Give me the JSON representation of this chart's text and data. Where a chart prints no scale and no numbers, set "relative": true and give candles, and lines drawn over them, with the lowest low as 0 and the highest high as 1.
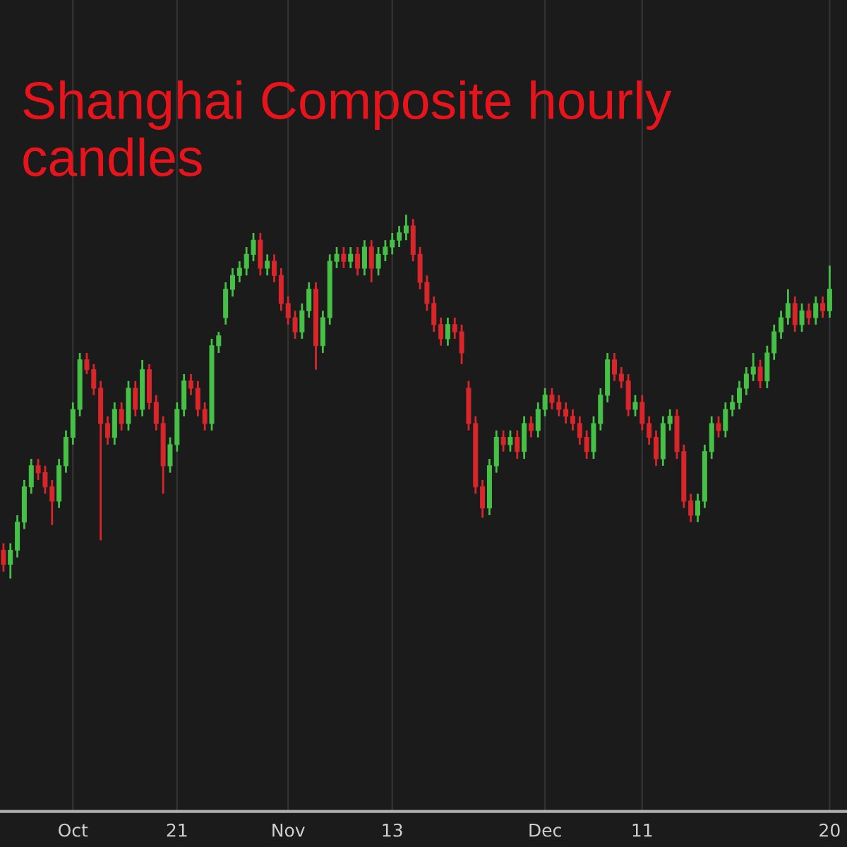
{
  "chart_data": {
    "type": "candlestick",
    "title": "Shanghai Composite hourly candles",
    "relative": true,
    "grid": "x",
    "categories": [
      null,
      null,
      null,
      null,
      null,
      null,
      null,
      null,
      null,
      null,
      "Oct",
      null,
      null,
      null,
      null,
      null,
      null,
      null,
      null,
      null,
      null,
      null,
      null,
      null,
      null,
      "21",
      null,
      null,
      null,
      null,
      null,
      null,
      null,
      null,
      null,
      null,
      null,
      null,
      null,
      null,
      null,
      "Nov",
      null,
      null,
      null,
      null,
      null,
      null,
      null,
      null,
      null,
      null,
      null,
      null,
      null,
      null,
      "13",
      null,
      null,
      null,
      null,
      null,
      null,
      null,
      null,
      null,
      null,
      null,
      null,
      null,
      null,
      null,
      null,
      null,
      null,
      null,
      null,
      null,
      "Dec",
      null,
      null,
      null,
      null,
      null,
      null,
      null,
      null,
      null,
      null,
      null,
      null,
      null,
      "11",
      null,
      null,
      null,
      null,
      null,
      null,
      null,
      null,
      null,
      null,
      null,
      null,
      null,
      null,
      null,
      null,
      null,
      null,
      null,
      null,
      null,
      null,
      null,
      null,
      null,
      null,
      "20"
    ],
    "ohlc": [
      [
        0.078,
        0.097,
        0.019,
        0.039
      ],
      [
        0.039,
        0.097,
        0,
        0.078
      ],
      [
        0.078,
        0.174,
        0.058,
        0.155
      ],
      [
        0.155,
        0.271,
        0.136,
        0.252
      ],
      [
        0.252,
        0.329,
        0.233,
        0.31
      ],
      [
        0.31,
        0.329,
        0.271,
        0.291
      ],
      [
        0.291,
        0.31,
        0.233,
        0.252
      ],
      [
        0.252,
        0.271,
        0.147,
        0.213
      ],
      [
        0.213,
        0.329,
        0.194,
        0.31
      ],
      [
        0.31,
        0.407,
        0.291,
        0.388
      ],
      [
        0.388,
        0.484,
        0.368,
        0.465
      ],
      [
        0.465,
        0.62,
        0.446,
        0.601
      ],
      [
        0.601,
        0.62,
        0.562,
        0.574
      ],
      [
        0.574,
        0.589,
        0.504,
        0.523
      ],
      [
        0.523,
        0.543,
        0.105,
        0.426
      ],
      [
        0.426,
        0.446,
        0.368,
        0.388
      ],
      [
        0.388,
        0.484,
        0.368,
        0.465
      ],
      [
        0.465,
        0.484,
        0.407,
        0.426
      ],
      [
        0.426,
        0.543,
        0.407,
        0.523
      ],
      [
        0.523,
        0.543,
        0.446,
        0.465
      ],
      [
        0.465,
        0.601,
        0.446,
        0.574
      ],
      [
        0.574,
        0.589,
        0.465,
        0.484
      ],
      [
        0.484,
        0.504,
        0.407,
        0.426
      ],
      [
        0.426,
        0.446,
        0.233,
        0.31
      ],
      [
        0.31,
        0.388,
        0.291,
        0.368
      ],
      [
        0.368,
        0.484,
        0.349,
        0.465
      ],
      [
        0.465,
        0.562,
        0.446,
        0.543
      ],
      [
        0.543,
        0.562,
        0.504,
        0.523
      ],
      [
        0.523,
        0.543,
        0.446,
        0.465
      ],
      [
        0.465,
        0.484,
        0.407,
        0.426
      ],
      [
        0.426,
        0.659,
        0.407,
        0.64
      ],
      [
        0.64,
        0.678,
        0.62,
        0.667
      ],
      [
        0.717,
        0.814,
        0.698,
        0.795
      ],
      [
        0.795,
        0.853,
        0.775,
        0.833
      ],
      [
        0.833,
        0.872,
        0.814,
        0.853
      ],
      [
        0.853,
        0.911,
        0.833,
        0.891
      ],
      [
        0.891,
        0.95,
        0.872,
        0.93
      ],
      [
        0.93,
        0.95,
        0.833,
        0.853
      ],
      [
        0.853,
        0.891,
        0.833,
        0.872
      ],
      [
        0.872,
        0.891,
        0.814,
        0.833
      ],
      [
        0.833,
        0.853,
        0.736,
        0.756
      ],
      [
        0.756,
        0.775,
        0.698,
        0.717
      ],
      [
        0.717,
        0.736,
        0.659,
        0.678
      ],
      [
        0.678,
        0.756,
        0.659,
        0.736
      ],
      [
        0.736,
        0.814,
        0.717,
        0.795
      ],
      [
        0.795,
        0.814,
        0.574,
        0.64
      ],
      [
        0.64,
        0.736,
        0.62,
        0.717
      ],
      [
        0.717,
        0.891,
        0.698,
        0.872
      ],
      [
        0.872,
        0.911,
        0.853,
        0.891
      ],
      [
        0.891,
        0.911,
        0.853,
        0.872
      ],
      [
        0.872,
        0.911,
        0.853,
        0.891
      ],
      [
        0.891,
        0.911,
        0.833,
        0.853
      ],
      [
        0.853,
        0.93,
        0.833,
        0.911
      ],
      [
        0.911,
        0.93,
        0.814,
        0.853
      ],
      [
        0.853,
        0.911,
        0.833,
        0.891
      ],
      [
        0.891,
        0.93,
        0.872,
        0.911
      ],
      [
        0.911,
        0.95,
        0.891,
        0.93
      ],
      [
        0.93,
        0.969,
        0.911,
        0.95
      ],
      [
        0.95,
        1,
        0.93,
        0.969
      ],
      [
        0.969,
        0.988,
        0.872,
        0.891
      ],
      [
        0.891,
        0.911,
        0.795,
        0.814
      ],
      [
        0.814,
        0.833,
        0.736,
        0.756
      ],
      [
        0.756,
        0.775,
        0.678,
        0.698
      ],
      [
        0.698,
        0.717,
        0.64,
        0.659
      ],
      [
        0.659,
        0.717,
        0.64,
        0.698
      ],
      [
        0.698,
        0.717,
        0.659,
        0.678
      ],
      [
        0.678,
        0.698,
        0.589,
        0.62
      ],
      [
        0.523,
        0.543,
        0.407,
        0.426
      ],
      [
        0.426,
        0.446,
        0.233,
        0.252
      ],
      [
        0.252,
        0.271,
        0.167,
        0.194
      ],
      [
        0.194,
        0.329,
        0.174,
        0.31
      ],
      [
        0.31,
        0.407,
        0.291,
        0.388
      ],
      [
        0.388,
        0.407,
        0.349,
        0.368
      ],
      [
        0.368,
        0.407,
        0.349,
        0.388
      ],
      [
        0.388,
        0.407,
        0.329,
        0.349
      ],
      [
        0.349,
        0.446,
        0.329,
        0.426
      ],
      [
        0.426,
        0.446,
        0.388,
        0.407
      ],
      [
        0.407,
        0.484,
        0.388,
        0.465
      ],
      [
        0.465,
        0.523,
        0.446,
        0.504
      ],
      [
        0.504,
        0.523,
        0.465,
        0.484
      ],
      [
        0.484,
        0.504,
        0.446,
        0.465
      ],
      [
        0.465,
        0.484,
        0.426,
        0.446
      ],
      [
        0.446,
        0.465,
        0.407,
        0.426
      ],
      [
        0.426,
        0.446,
        0.368,
        0.388
      ],
      [
        0.388,
        0.407,
        0.329,
        0.349
      ],
      [
        0.349,
        0.446,
        0.329,
        0.426
      ],
      [
        0.426,
        0.523,
        0.407,
        0.504
      ],
      [
        0.504,
        0.62,
        0.484,
        0.601
      ],
      [
        0.601,
        0.62,
        0.543,
        0.562
      ],
      [
        0.562,
        0.581,
        0.523,
        0.543
      ],
      [
        0.543,
        0.562,
        0.446,
        0.465
      ],
      [
        0.465,
        0.504,
        0.446,
        0.484
      ],
      [
        0.484,
        0.504,
        0.407,
        0.426
      ],
      [
        0.426,
        0.446,
        0.368,
        0.388
      ],
      [
        0.388,
        0.407,
        0.31,
        0.329
      ],
      [
        0.329,
        0.446,
        0.31,
        0.426
      ],
      [
        0.426,
        0.465,
        0.407,
        0.446
      ],
      [
        0.446,
        0.465,
        0.329,
        0.349
      ],
      [
        0.349,
        0.368,
        0.194,
        0.213
      ],
      [
        0.213,
        0.233,
        0.155,
        0.174
      ],
      [
        0.174,
        0.233,
        0.155,
        0.213
      ],
      [
        0.213,
        0.368,
        0.194,
        0.349
      ],
      [
        0.349,
        0.446,
        0.329,
        0.426
      ],
      [
        0.426,
        0.446,
        0.388,
        0.407
      ],
      [
        0.407,
        0.484,
        0.388,
        0.465
      ],
      [
        0.465,
        0.504,
        0.446,
        0.484
      ],
      [
        0.484,
        0.543,
        0.465,
        0.523
      ],
      [
        0.523,
        0.581,
        0.504,
        0.562
      ],
      [
        0.562,
        0.62,
        0.543,
        0.581
      ],
      [
        0.581,
        0.601,
        0.523,
        0.543
      ],
      [
        0.543,
        0.64,
        0.523,
        0.62
      ],
      [
        0.62,
        0.698,
        0.601,
        0.678
      ],
      [
        0.678,
        0.736,
        0.659,
        0.717
      ],
      [
        0.717,
        0.795,
        0.698,
        0.756
      ],
      [
        0.756,
        0.775,
        0.678,
        0.698
      ],
      [
        0.698,
        0.756,
        0.678,
        0.736
      ],
      [
        0.736,
        0.756,
        0.698,
        0.717
      ],
      [
        0.717,
        0.775,
        0.698,
        0.756
      ],
      [
        0.756,
        0.775,
        0.717,
        0.736
      ],
      [
        0.736,
        0.86,
        0.717,
        0.795
      ]
    ],
    "colors": [
      "#d8262b",
      "#46c046",
      "#46c046",
      "#46c046",
      "#46c046",
      "#d8262b",
      "#d8262b",
      "#d8262b",
      "#46c046",
      "#46c046",
      "#46c046",
      "#46c046",
      "#d8262b",
      "#d8262b",
      "#d8262b",
      "#d8262b",
      "#46c046",
      "#d8262b",
      "#46c046",
      "#d8262b",
      "#46c046",
      "#d8262b",
      "#d8262b",
      "#d8262b",
      "#46c046",
      "#46c046",
      "#46c046",
      "#d8262b",
      "#d8262b",
      "#d8262b",
      "#46c046",
      "#46c046",
      "#46c046",
      "#46c046",
      "#46c046",
      "#46c046",
      "#46c046",
      "#d8262b",
      "#46c046",
      "#d8262b",
      "#d8262b",
      "#d8262b",
      "#d8262b",
      "#46c046",
      "#46c046",
      "#d8262b",
      "#46c046",
      "#46c046",
      "#46c046",
      "#d8262b",
      "#46c046",
      "#d8262b",
      "#46c046",
      "#d8262b",
      "#46c046",
      "#46c046",
      "#46c046",
      "#46c046",
      "#46c046",
      "#d8262b",
      "#d8262b",
      "#d8262b",
      "#d8262b",
      "#d8262b",
      "#46c046",
      "#d8262b",
      "#d8262b",
      "#d8262b",
      "#d8262b",
      "#d8262b",
      "#46c046",
      "#46c046",
      "#d8262b",
      "#46c046",
      "#d8262b",
      "#46c046",
      "#d8262b",
      "#46c046",
      "#46c046",
      "#d8262b",
      "#d8262b",
      "#d8262b",
      "#d8262b",
      "#d8262b",
      "#d8262b",
      "#46c046",
      "#46c046",
      "#46c046",
      "#d8262b",
      "#d8262b",
      "#d8262b",
      "#46c046",
      "#d8262b",
      "#d8262b",
      "#d8262b",
      "#46c046",
      "#46c046",
      "#d8262b",
      "#d8262b",
      "#d8262b",
      "#46c046",
      "#46c046",
      "#46c046",
      "#d8262b",
      "#46c046",
      "#46c046",
      "#46c046",
      "#46c046",
      "#46c046",
      "#d8262b",
      "#46c046",
      "#46c046",
      "#46c046",
      "#46c046",
      "#d8262b",
      "#46c046",
      "#d8262b",
      "#46c046",
      "#d8262b",
      "#46c046"
    ]
  }
}
